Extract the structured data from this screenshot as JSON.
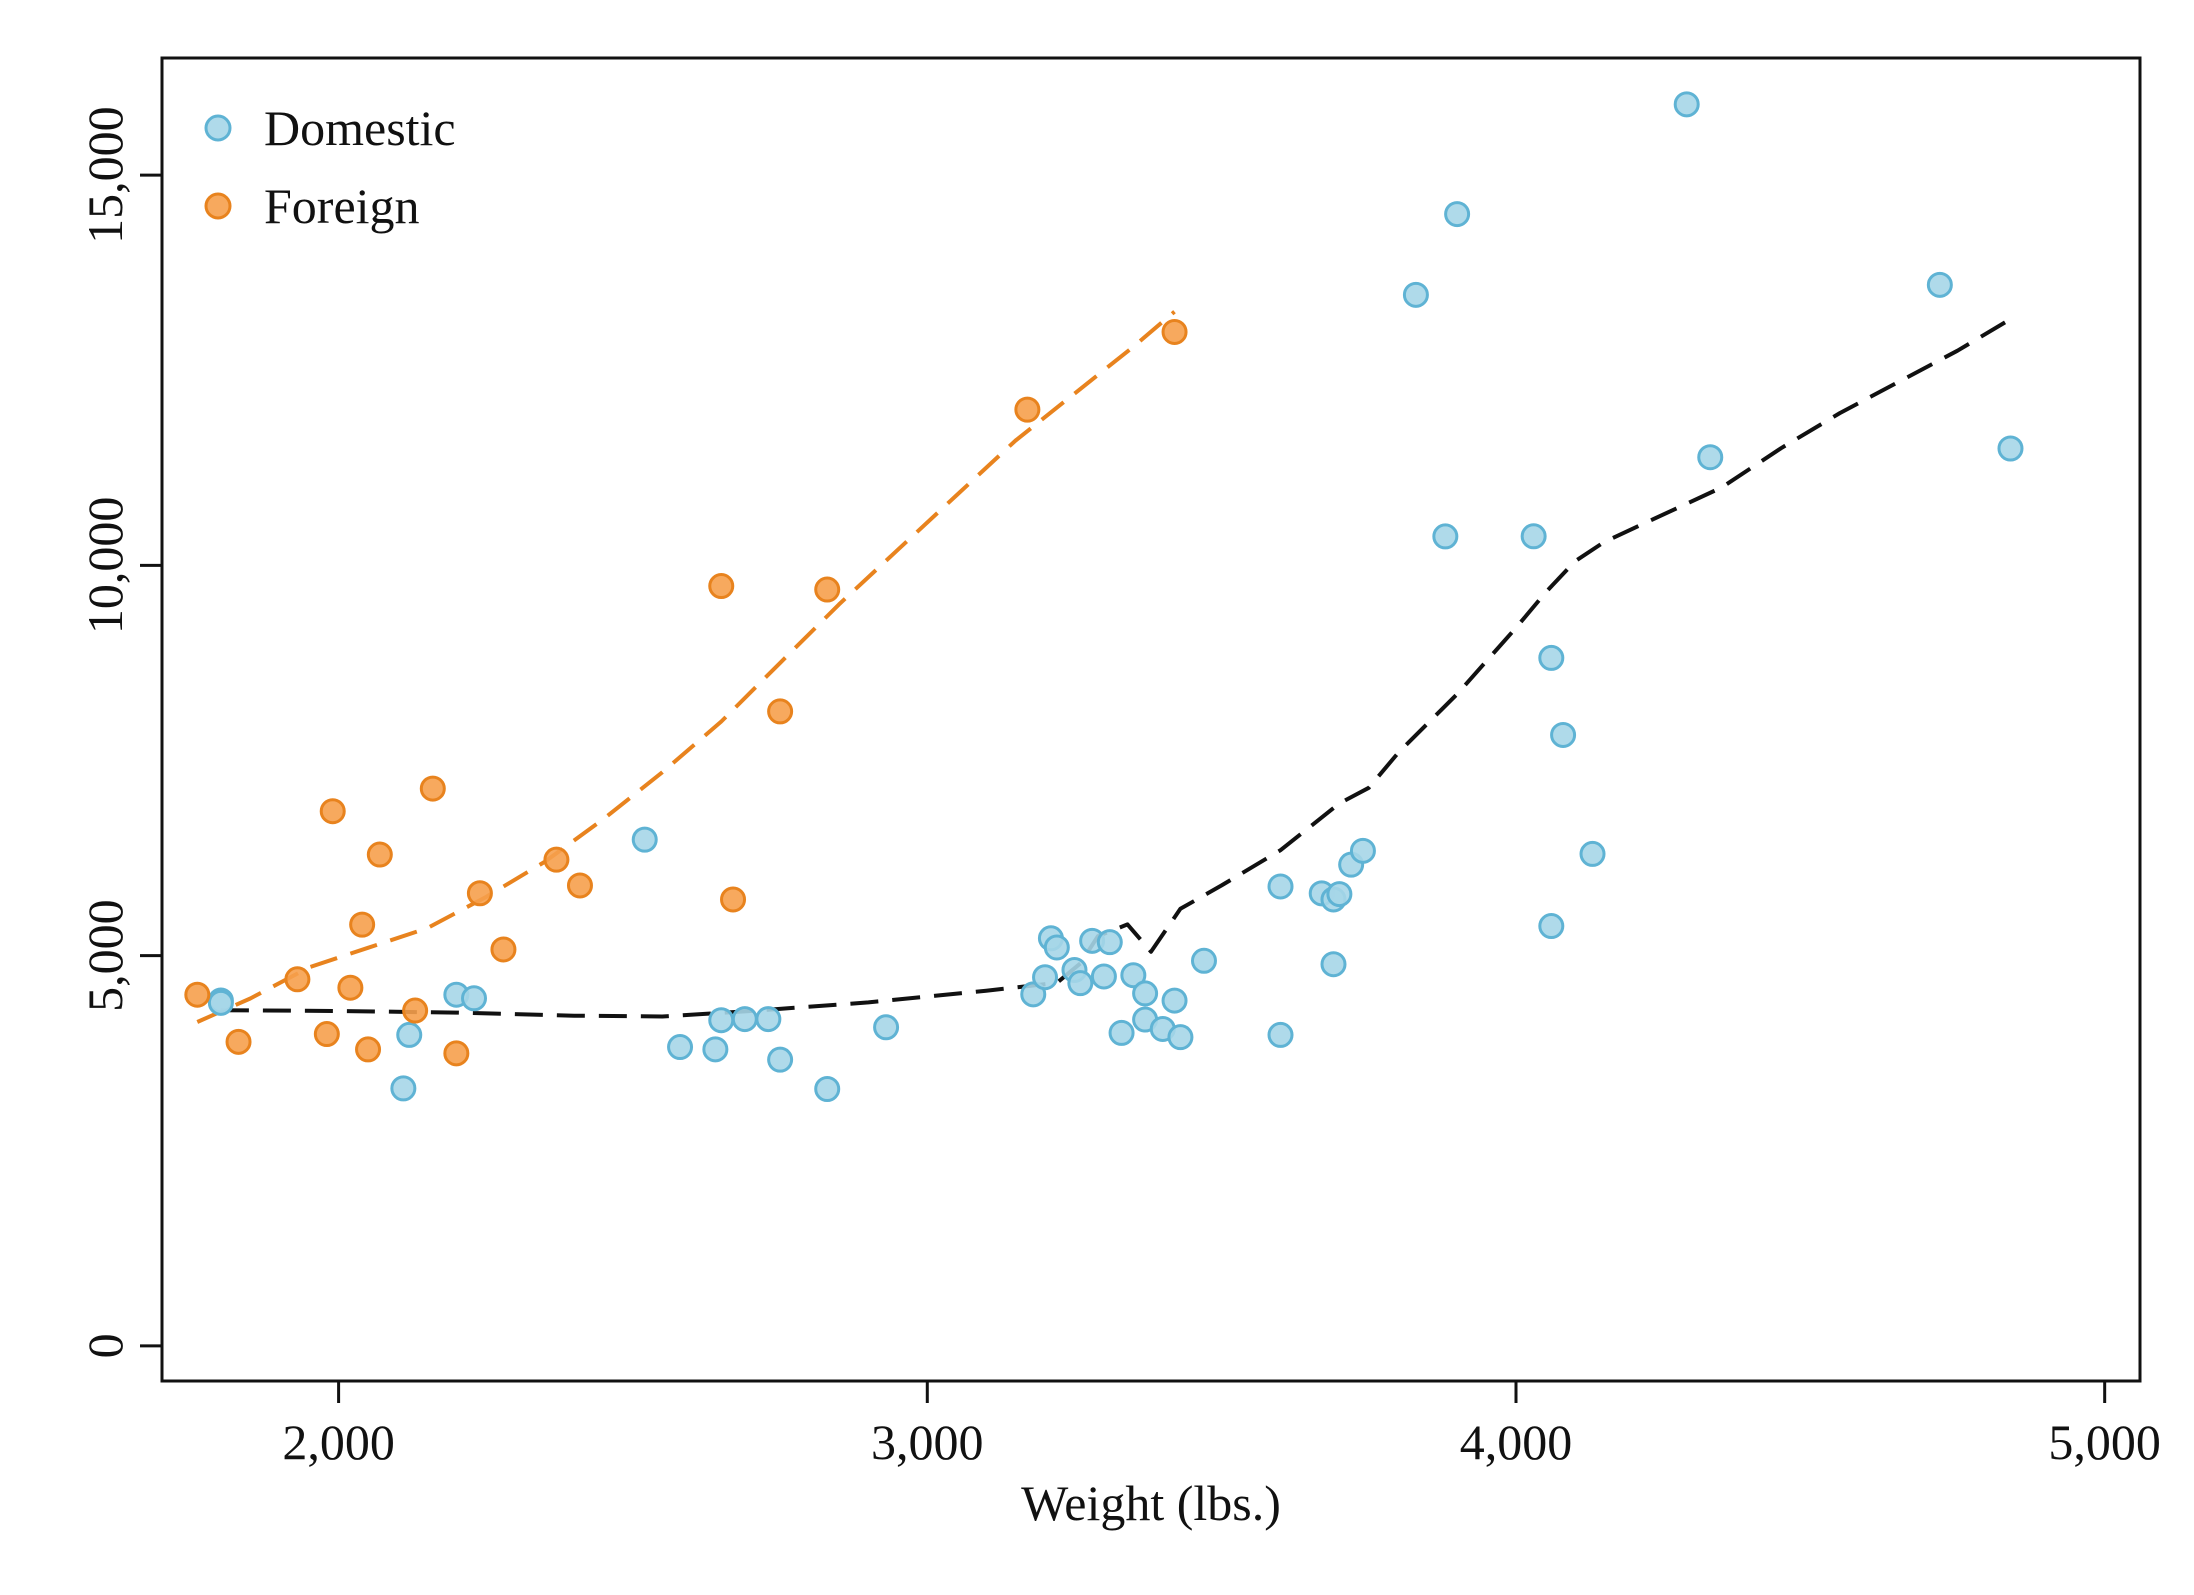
{
  "chart_data": {
    "type": "scatter",
    "xlabel": "Weight (lbs.)",
    "ylabel": "",
    "xlim": [
      1700,
      5060
    ],
    "ylim": [
      -450,
      16500
    ],
    "x_ticks": [
      2000,
      3000,
      4000,
      5000
    ],
    "x_tick_labels": [
      "2,000",
      "3,000",
      "4,000",
      "5,000"
    ],
    "y_ticks": [
      0,
      5000,
      10000,
      15000
    ],
    "y_tick_labels": [
      "0",
      "5,000",
      "10,000",
      "15,000"
    ],
    "grid": false,
    "legend_position": "top-left",
    "series": [
      {
        "name": "Domestic",
        "color": "#a6d6e8",
        "stroke": "#5fb3d4",
        "points": [
          [
            1800,
            4425
          ],
          [
            1800,
            4395
          ],
          [
            2110,
            3299
          ],
          [
            2120,
            3984
          ],
          [
            2200,
            4499
          ],
          [
            2230,
            4453
          ],
          [
            2520,
            6486
          ],
          [
            2580,
            3829
          ],
          [
            2640,
            3799
          ],
          [
            2650,
            4172
          ],
          [
            2690,
            4187
          ],
          [
            2730,
            4187
          ],
          [
            2750,
            3667
          ],
          [
            2830,
            3291
          ],
          [
            2930,
            4082
          ],
          [
            3180,
            4504
          ],
          [
            3200,
            4723
          ],
          [
            3210,
            5222
          ],
          [
            3220,
            5104
          ],
          [
            3250,
            4816
          ],
          [
            3260,
            4647
          ],
          [
            3280,
            5189
          ],
          [
            3300,
            4733
          ],
          [
            3310,
            5172
          ],
          [
            3330,
            4010
          ],
          [
            3350,
            4749
          ],
          [
            3370,
            4516
          ],
          [
            3370,
            4181
          ],
          [
            3400,
            4060
          ],
          [
            3420,
            4424
          ],
          [
            3430,
            3955
          ],
          [
            3470,
            4934
          ],
          [
            3600,
            5886
          ],
          [
            3600,
            3984
          ],
          [
            3670,
            5798
          ],
          [
            3690,
            4890
          ],
          [
            3690,
            5719
          ],
          [
            3700,
            5788
          ],
          [
            3720,
            6165
          ],
          [
            3740,
            6342
          ],
          [
            3830,
            13466
          ],
          [
            3880,
            10371
          ],
          [
            3900,
            14500
          ],
          [
            4030,
            10372
          ],
          [
            4060,
            8814
          ],
          [
            4060,
            5379
          ],
          [
            4080,
            7827
          ],
          [
            4130,
            6303
          ],
          [
            4290,
            15906
          ],
          [
            4330,
            11385
          ],
          [
            4720,
            13594
          ],
          [
            4840,
            11497
          ]
        ]
      },
      {
        "name": "Foreign",
        "color": "#f6a04d",
        "stroke": "#e8831e",
        "points": [
          [
            1760,
            4499
          ],
          [
            1830,
            3895
          ],
          [
            1930,
            4697
          ],
          [
            1980,
            3995
          ],
          [
            1990,
            6850
          ],
          [
            2020,
            4589
          ],
          [
            2040,
            5397
          ],
          [
            2050,
            3798
          ],
          [
            2070,
            6295
          ],
          [
            2130,
            4296
          ],
          [
            2160,
            7140
          ],
          [
            2200,
            3748
          ],
          [
            2240,
            5799
          ],
          [
            2280,
            5079
          ],
          [
            2370,
            6229
          ],
          [
            2410,
            5899
          ],
          [
            2650,
            9735
          ],
          [
            2670,
            5719
          ],
          [
            2750,
            8129
          ],
          [
            2830,
            9690
          ],
          [
            3170,
            11995
          ],
          [
            3420,
            12990
          ]
        ]
      }
    ],
    "fit_lines": [
      {
        "series": "Foreign",
        "color": "#e8831e",
        "style": "dashed",
        "points": [
          [
            1760,
            4150
          ],
          [
            1850,
            4450
          ],
          [
            1950,
            4850
          ],
          [
            2050,
            5100
          ],
          [
            2150,
            5350
          ],
          [
            2250,
            5750
          ],
          [
            2350,
            6200
          ],
          [
            2450,
            6750
          ],
          [
            2550,
            7350
          ],
          [
            2650,
            8000
          ],
          [
            2750,
            8750
          ],
          [
            2850,
            9500
          ],
          [
            2950,
            10200
          ],
          [
            3050,
            10900
          ],
          [
            3150,
            11600
          ],
          [
            3250,
            12200
          ],
          [
            3350,
            12800
          ],
          [
            3420,
            13250
          ]
        ]
      },
      {
        "series": "Domestic",
        "color": "#111111",
        "style": "dashed",
        "points": [
          [
            1800,
            4300
          ],
          [
            2000,
            4290
          ],
          [
            2200,
            4270
          ],
          [
            2400,
            4230
          ],
          [
            2550,
            4220
          ],
          [
            2700,
            4290
          ],
          [
            2900,
            4400
          ],
          [
            3100,
            4550
          ],
          [
            3220,
            4650
          ],
          [
            3260,
            4900
          ],
          [
            3290,
            5250
          ],
          [
            3340,
            5400
          ],
          [
            3380,
            5050
          ],
          [
            3430,
            5600
          ],
          [
            3500,
            5900
          ],
          [
            3600,
            6350
          ],
          [
            3700,
            6950
          ],
          [
            3750,
            7150
          ],
          [
            3800,
            7600
          ],
          [
            3900,
            8350
          ],
          [
            4000,
            9200
          ],
          [
            4050,
            9650
          ],
          [
            4100,
            10050
          ],
          [
            4150,
            10300
          ],
          [
            4250,
            10650
          ],
          [
            4350,
            11000
          ],
          [
            4450,
            11500
          ],
          [
            4550,
            11950
          ],
          [
            4650,
            12350
          ],
          [
            4750,
            12750
          ],
          [
            4850,
            13200
          ]
        ]
      }
    ]
  }
}
